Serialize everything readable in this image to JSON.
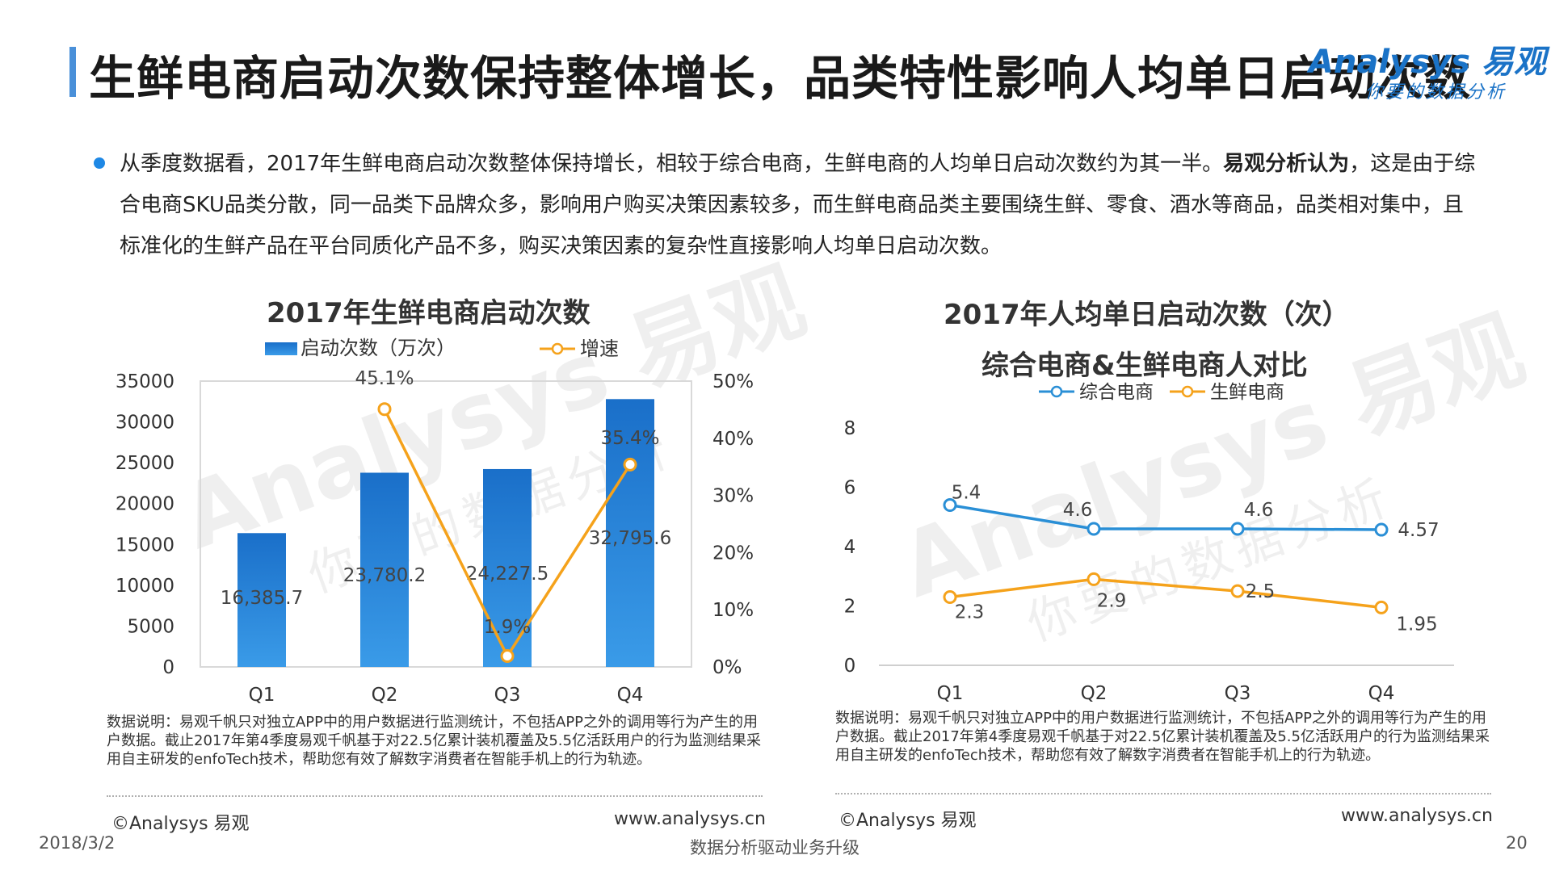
{
  "title": "生鲜电商启动次数保持整体增长，品类特性影响人均单日启动次数",
  "logo": {
    "brand": "Analysys 易观",
    "slogan": "你要的数据分析"
  },
  "paragraph": {
    "part1": "从季度数据看，2017年生鲜电商启动次数整体保持增长，相较于综合电商，生鲜电商的人均单日启动次数约为其一半。",
    "bold": "易观分析认为",
    "part2": "，这是由于综合电商SKU品类分散，同一品类下品牌众多，影响用户购买决策因素较多，而生鲜电商品类主要围绕生鲜、零食、酒水等商品，品类相对集中，且标准化的生鲜产品在平台同质化产品不多，购买决策因素的复杂性直接影响人均单日启动次数。"
  },
  "left_chart_title": "2017年生鲜电商启动次数",
  "right_chart_title_line1": "2017年人均单日启动次数（次）",
  "right_chart_title_line2": "综合电商&生鲜电商人对比",
  "watermark": {
    "brand": "Analysys 易观",
    "slogan": "你要的数据分析"
  },
  "chart_data": [
    {
      "type": "bar",
      "title": "2017年生鲜电商启动次数",
      "categories": [
        "Q1",
        "Q2",
        "Q3",
        "Q4"
      ],
      "series": [
        {
          "name": "启动次数（万次）",
          "type": "bar",
          "axis": "left",
          "values": [
            16385.7,
            23780.2,
            24227.5,
            32795.6
          ],
          "labels": [
            "16,385.7",
            "23,780.2",
            "24,227.5",
            "32,795.6"
          ],
          "color": "#1f7bd4"
        },
        {
          "name": "增速",
          "type": "line",
          "axis": "right",
          "values": [
            null,
            45.1,
            1.9,
            35.4
          ],
          "labels": [
            "",
            "45.1%",
            "1.9%",
            "35.4%"
          ],
          "color": "#f5a21b"
        }
      ],
      "ylim": [
        0,
        35000
      ],
      "yticks": [
        "0",
        "5000",
        "10000",
        "15000",
        "20000",
        "25000",
        "30000",
        "35000"
      ],
      "y2lim": [
        0,
        50
      ],
      "y2ticks": [
        "0%",
        "10%",
        "20%",
        "30%",
        "40%",
        "50%"
      ],
      "legend": "top",
      "grid": false
    },
    {
      "type": "line",
      "categories": [
        "Q1",
        "Q2",
        "Q3",
        "Q4"
      ],
      "series": [
        {
          "name": "综合电商",
          "values": [
            5.4,
            4.6,
            4.6,
            4.57
          ],
          "labels": [
            "5.4",
            "4.6",
            "4.6",
            "4.57"
          ],
          "color": "#2a8fd6"
        },
        {
          "name": "生鲜电商",
          "values": [
            2.3,
            2.9,
            2.5,
            1.95
          ],
          "labels": [
            "2.3",
            "2.9",
            "2.5",
            "1.95"
          ],
          "color": "#f5a21b"
        }
      ],
      "ylim": [
        0,
        8
      ],
      "yticks": [
        "0",
        "2",
        "4",
        "6",
        "8"
      ],
      "legend": "top",
      "grid": false
    }
  ],
  "notes": {
    "left": "数据说明：易观千帆只对独立APP中的用户数据进行监测统计，不包括APP之外的调用等行为产生的用户数据。截止2017年第4季度易观千帆基于对22.5亿累计装机覆盖及5.5亿活跃用户的行为监测结果采用自主研发的enfoTech技术，帮助您有效了解数字消费者在智能手机上的行为轨迹。",
    "right": "数据说明：易观千帆只对独立APP中的用户数据进行监测统计，不包括APP之外的调用等行为产生的用户数据。截止2017年第4季度易观千帆基于对22.5亿累计装机覆盖及5.5亿活跃用户的行为监测结果采用自主研发的enfoTech技术，帮助您有效了解数字消费者在智能手机上的行为轨迹。"
  },
  "source": {
    "left": "©Analysys 易观",
    "url": "www.analysys.cn"
  },
  "footer": {
    "date": "2018/3/2",
    "slogan": "数据分析驱动业务升级",
    "page": "20"
  }
}
